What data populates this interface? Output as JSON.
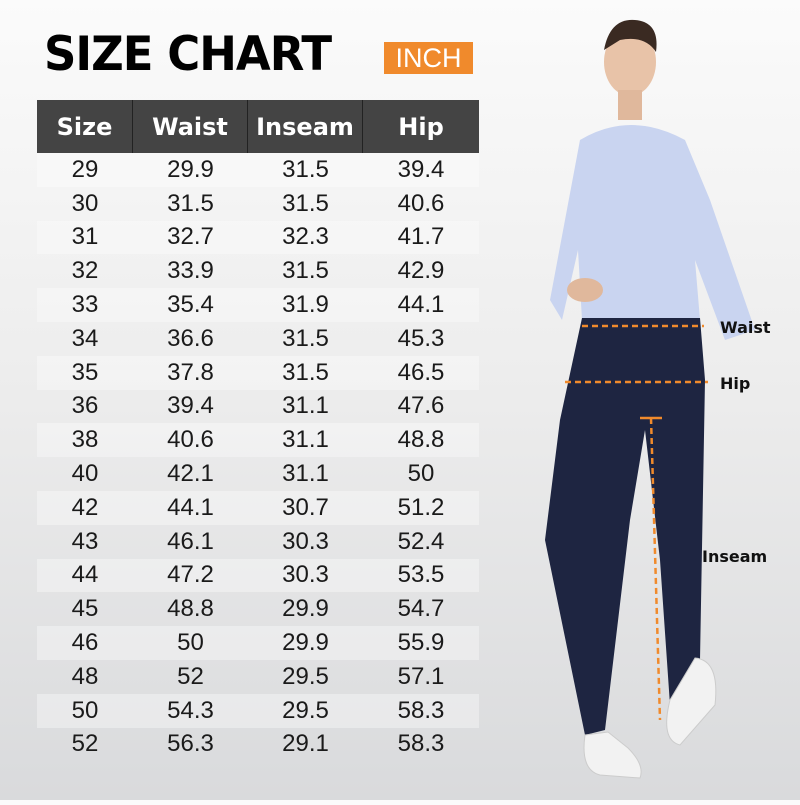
{
  "title": "SIZE CHART",
  "unit_badge": "INCH",
  "table": {
    "headers": [
      "Size",
      "Waist",
      "Inseam",
      "Hip"
    ],
    "rows": [
      [
        "29",
        "29.9",
        "31.5",
        "39.4"
      ],
      [
        "30",
        "31.5",
        "31.5",
        "40.6"
      ],
      [
        "31",
        "32.7",
        "32.3",
        "41.7"
      ],
      [
        "32",
        "33.9",
        "31.5",
        "42.9"
      ],
      [
        "33",
        "35.4",
        "31.9",
        "44.1"
      ],
      [
        "34",
        "36.6",
        "31.5",
        "45.3"
      ],
      [
        "35",
        "37.8",
        "31.5",
        "46.5"
      ],
      [
        "36",
        "39.4",
        "31.1",
        "47.6"
      ],
      [
        "38",
        "40.6",
        "31.1",
        "48.8"
      ],
      [
        "40",
        "42.1",
        "31.1",
        "50"
      ],
      [
        "42",
        "44.1",
        "30.7",
        "51.2"
      ],
      [
        "43",
        "46.1",
        "30.3",
        "52.4"
      ],
      [
        "44",
        "47.2",
        "30.3",
        "53.5"
      ],
      [
        "45",
        "48.8",
        "29.9",
        "54.7"
      ],
      [
        "46",
        "50",
        "29.9",
        "55.9"
      ],
      [
        "48",
        "52",
        "29.5",
        "57.1"
      ],
      [
        "50",
        "54.3",
        "29.5",
        "58.3"
      ],
      [
        "52",
        "56.3",
        "29.1",
        "58.3"
      ]
    ]
  },
  "figure": {
    "labels": {
      "waist": "Waist",
      "hip": "Hip",
      "inseam": "Inseam"
    },
    "accent_color": "#f08a2c"
  }
}
